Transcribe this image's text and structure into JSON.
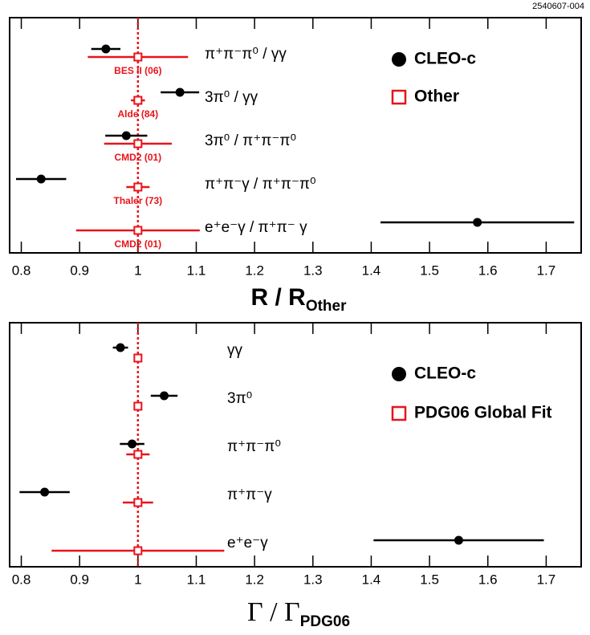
{
  "figure_id": "2540607-004",
  "chart_data": [
    {
      "type": "errorbar",
      "xlabel": "R / R",
      "xlabel_sub": "Other",
      "xlim": [
        0.78,
        1.76
      ],
      "xticks": [
        0.8,
        0.9,
        1,
        1.1,
        1.2,
        1.3,
        1.4,
        1.5,
        1.6,
        1.7
      ],
      "reference_line": 1,
      "categories": [
        "π⁺π⁻π⁰ / γγ",
        "3π⁰ / γγ",
        "3π⁰ / π⁺π⁻π⁰",
        "π⁺π⁻γ / π⁺π⁻π⁰",
        "e⁺e⁻γ / π⁺π⁻ γ"
      ],
      "series": [
        {
          "name": "CLEO-c",
          "color": "#000000",
          "marker": "circle",
          "values": [
            0.945,
            1.072,
            0.98,
            0.834,
            1.582
          ],
          "errors": [
            0.025,
            0.033,
            0.036,
            0.043,
            0.166
          ]
        },
        {
          "name": "Other",
          "color": "#e8141b",
          "marker": "square",
          "values": [
            1,
            1,
            1,
            1,
            1
          ],
          "errors": [
            0.086,
            0.012,
            0.058,
            0.02,
            0.106
          ],
          "point_labels": [
            "BES II (06)",
            "Alde (84)",
            "CMD2 (01)",
            "Thaler (73)",
            "CMD2 (01)"
          ]
        }
      ]
    },
    {
      "type": "errorbar",
      "xlabel": "Γ / Γ",
      "xlabel_sub": "PDG06",
      "xlim": [
        0.78,
        1.76
      ],
      "xticks": [
        0.8,
        0.9,
        1,
        1.1,
        1.2,
        1.3,
        1.4,
        1.5,
        1.6,
        1.7
      ],
      "reference_line": 1,
      "categories": [
        "γγ",
        "3π⁰",
        "π⁺π⁻π⁰",
        "π⁺π⁻γ",
        "e⁺e⁻γ"
      ],
      "series": [
        {
          "name": "CLEO-c",
          "color": "#000000",
          "marker": "circle",
          "values": [
            0.97,
            1.045,
            0.99,
            0.84,
            1.55
          ],
          "errors": [
            0.013,
            0.023,
            0.021,
            0.043,
            0.146
          ]
        },
        {
          "name": "PDG06 Global Fit",
          "color": "#e8141b",
          "marker": "square",
          "values": [
            1,
            1,
            1,
            1,
            1
          ],
          "errors": [
            0.003,
            0.005,
            0.02,
            0.026,
            0.148
          ]
        }
      ]
    }
  ]
}
